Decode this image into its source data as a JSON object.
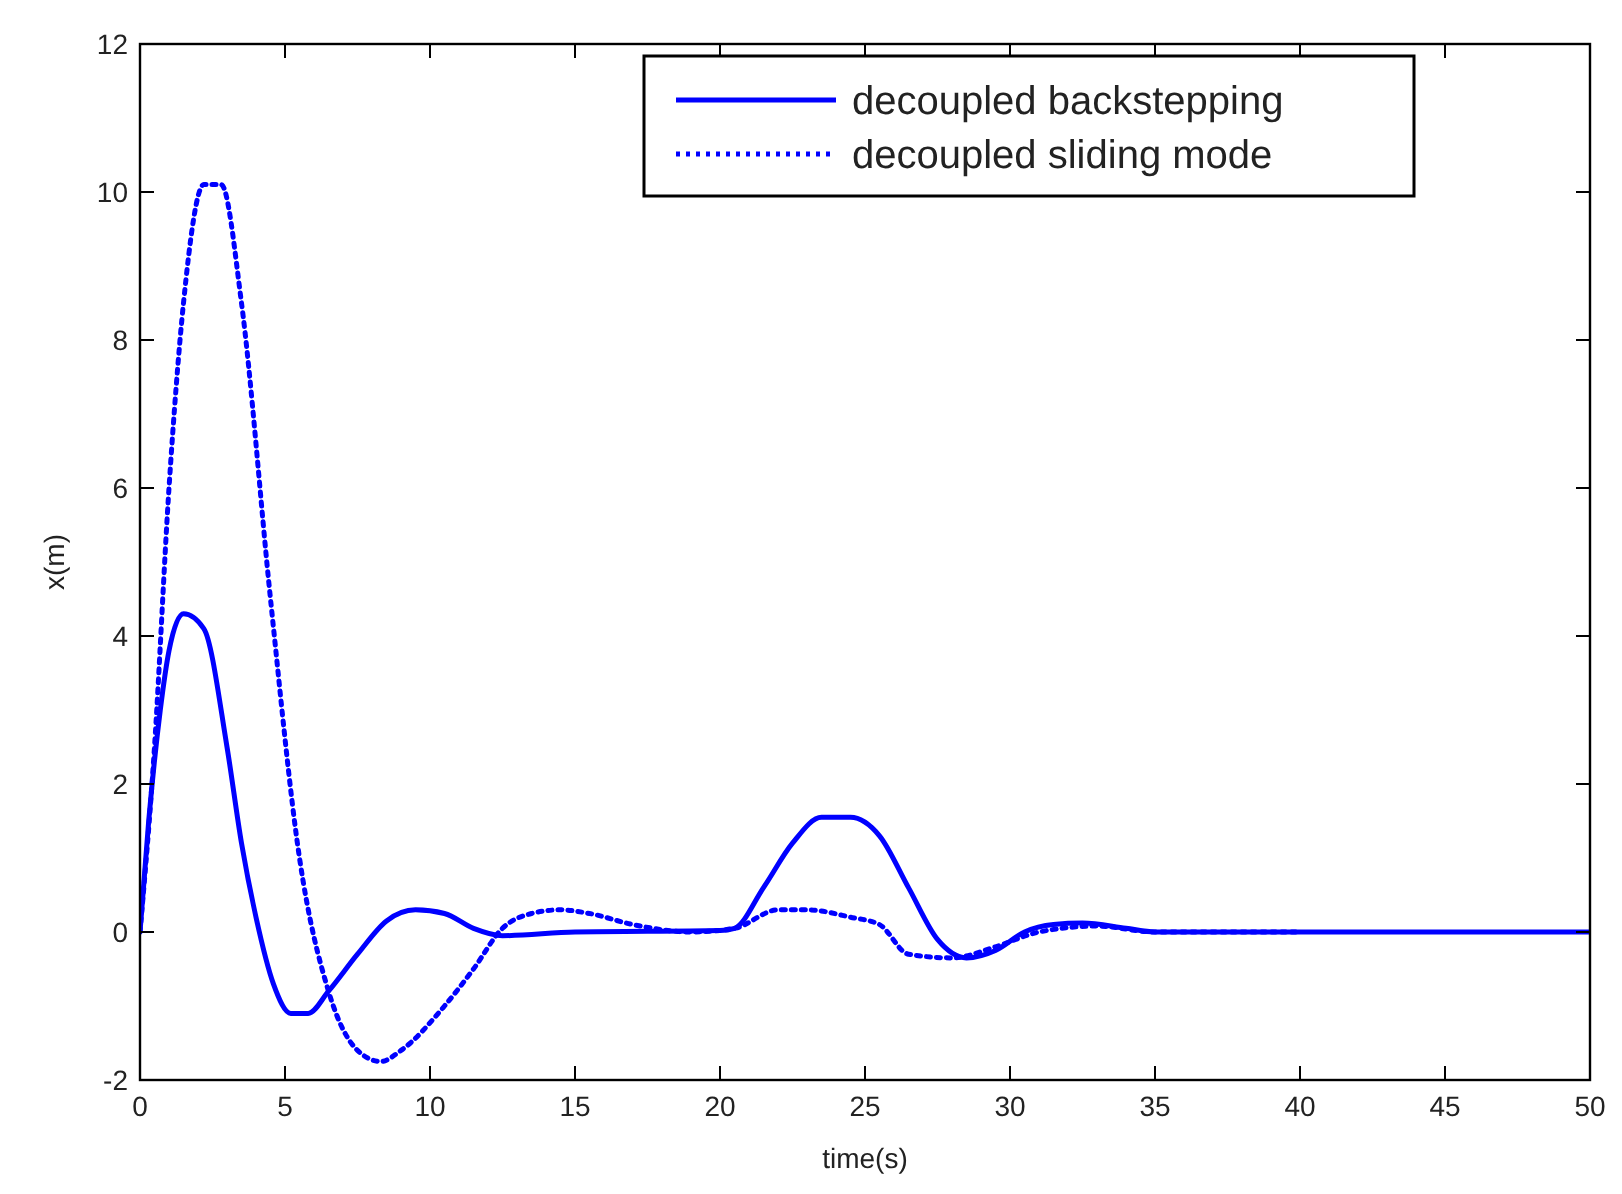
{
  "chart_data": {
    "type": "line",
    "xlabel": "time(s)",
    "ylabel": "x(m)",
    "xlim": [
      0,
      50
    ],
    "xticks": [
      0,
      5,
      10,
      15,
      20,
      25,
      30,
      35,
      40,
      45,
      50
    ],
    "ylim": [
      -2,
      12
    ],
    "yticks": [
      -2,
      0,
      2,
      4,
      6,
      8,
      10,
      12
    ],
    "grid": false,
    "legend": "top right",
    "marker": "none",
    "series": [
      {
        "name": "decoupled backstepping",
        "color": "#0000ff",
        "line_style": "solid",
        "x": [
          0,
          0.3,
          0.7,
          1.0,
          1.5,
          2.2,
          3,
          3.5,
          4,
          4.6,
          5.2,
          5.8,
          6.5,
          7.5,
          8.5,
          9.5,
          10.5,
          11.5,
          12.5,
          15,
          20,
          20.5,
          21.5,
          22.5,
          23.5,
          24.5,
          25.5,
          26.5,
          27.5,
          28.5,
          29.5,
          30.5,
          31.5,
          32.5,
          34,
          35,
          50
        ],
        "values": [
          0,
          1.5,
          3,
          3.8,
          4.3,
          4.1,
          2.5,
          1.2,
          0.2,
          -0.7,
          -1.1,
          -1.1,
          -0.8,
          -0.3,
          0.15,
          0.3,
          0.25,
          0.05,
          -0.05,
          0,
          0.02,
          0.05,
          0.6,
          1.2,
          1.55,
          1.55,
          1.3,
          0.6,
          -0.1,
          -0.35,
          -0.25,
          0,
          0.1,
          0.12,
          0.05,
          0,
          0
        ]
      },
      {
        "name": "decoupled sliding mode",
        "color": "#0000ff",
        "line_style": "dotted",
        "x": [
          0,
          0.5,
          1,
          1.5,
          2.2,
          2.8,
          3.5,
          4.5,
          5.5,
          6.5,
          7.5,
          8.3,
          9,
          10.5,
          11.5,
          12.5,
          13.5,
          14.5,
          15.5,
          17,
          19,
          20.5,
          22,
          23,
          24.5,
          25.5,
          26.5,
          28,
          29.5,
          31,
          33,
          35,
          40
        ],
        "values": [
          0,
          2.5,
          6,
          8.5,
          10.1,
          10.1,
          8.5,
          4.5,
          1,
          -0.8,
          -1.6,
          -1.75,
          -1.6,
          -1.0,
          -0.5,
          0.05,
          0.25,
          0.3,
          0.25,
          0.1,
          0,
          0.05,
          0.3,
          0.3,
          0.2,
          0.1,
          -0.3,
          -0.35,
          -0.2,
          0,
          0.08,
          0,
          0
        ]
      }
    ]
  }
}
